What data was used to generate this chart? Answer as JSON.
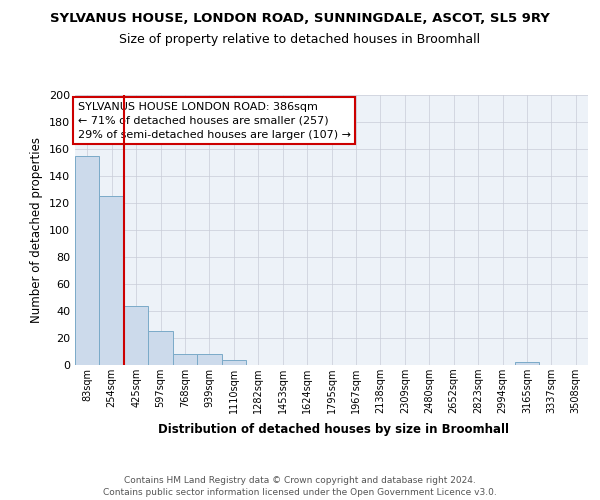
{
  "title": "SYLVANUS HOUSE, LONDON ROAD, SUNNINGDALE, ASCOT, SL5 9RY",
  "subtitle": "Size of property relative to detached houses in Broomhall",
  "xlabel": "Distribution of detached houses by size in Broomhall",
  "ylabel": "Number of detached properties",
  "bar_labels": [
    "83sqm",
    "254sqm",
    "425sqm",
    "597sqm",
    "768sqm",
    "939sqm",
    "1110sqm",
    "1282sqm",
    "1453sqm",
    "1624sqm",
    "1795sqm",
    "1967sqm",
    "2138sqm",
    "2309sqm",
    "2480sqm",
    "2652sqm",
    "2823sqm",
    "2994sqm",
    "3165sqm",
    "3337sqm",
    "3508sqm"
  ],
  "bar_values": [
    155,
    125,
    44,
    25,
    8,
    8,
    4,
    0,
    0,
    0,
    0,
    0,
    0,
    0,
    0,
    0,
    0,
    0,
    2,
    0,
    0
  ],
  "bar_color": "#ccdaeb",
  "bar_edge_color": "#7aaac8",
  "vline_color": "#cc0000",
  "ylim": [
    0,
    200
  ],
  "yticks": [
    0,
    20,
    40,
    60,
    80,
    100,
    120,
    140,
    160,
    180,
    200
  ],
  "annotation_line1": "SYLVANUS HOUSE LONDON ROAD: 386sqm",
  "annotation_line2": "← 71% of detached houses are smaller (257)",
  "annotation_line3": "29% of semi-detached houses are larger (107) →",
  "footer_text": "Contains HM Land Registry data © Crown copyright and database right 2024.\nContains public sector information licensed under the Open Government Licence v3.0.",
  "background_color": "#edf2f8",
  "grid_color": "#c8ccd8"
}
